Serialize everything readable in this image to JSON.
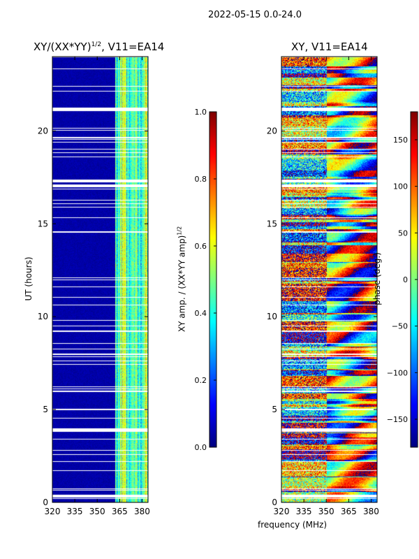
{
  "suptitle": "2022-05-15 0.0-24.0",
  "chart_data": [
    {
      "type": "heatmap",
      "title": "XY/(XX*YY)^1/2, V11=EA14",
      "title_main": "XY/(XX*YY)",
      "title_sup": "1/2",
      "title_tail": ", V11=EA14",
      "xlabel": "frequency (MHz)",
      "ylabel": "UT (hours)",
      "xlim": [
        320,
        384
      ],
      "ylim": [
        0,
        24
      ],
      "xticks": [
        320,
        335,
        350,
        365,
        380
      ],
      "yticks": [
        0,
        5,
        10,
        15,
        20
      ],
      "colormap": "jet",
      "colorbar": {
        "label_main": "XY amp. / (XX*YY amp)",
        "label_sup": "1/2",
        "range": [
          0.0,
          1.0
        ],
        "ticks": [
          "0.0",
          "0.2",
          "0.4",
          "0.6",
          "0.8",
          "1.0"
        ]
      },
      "description_values": {
        "low_band_level": 0.03,
        "high_band_start_mhz": 362,
        "high_band_level": 0.45
      }
    },
    {
      "type": "heatmap",
      "title": "XY, V11=EA14",
      "xlabel": "frequency (MHz)",
      "ylabel": "",
      "xlim": [
        320,
        384
      ],
      "ylim": [
        0,
        24
      ],
      "xticks": [
        320,
        335,
        350,
        365,
        380
      ],
      "yticks": [
        0,
        5,
        10,
        15,
        20
      ],
      "colormap": "jet",
      "colorbar": {
        "label": "phase (deg.)",
        "range": [
          -180,
          180
        ],
        "ticks": [
          "−150",
          "−100",
          "−50",
          "0",
          "50",
          "100",
          "150"
        ],
        "tick_values": [
          -150,
          -100,
          -50,
          0,
          50,
          100,
          150
        ]
      }
    }
  ]
}
